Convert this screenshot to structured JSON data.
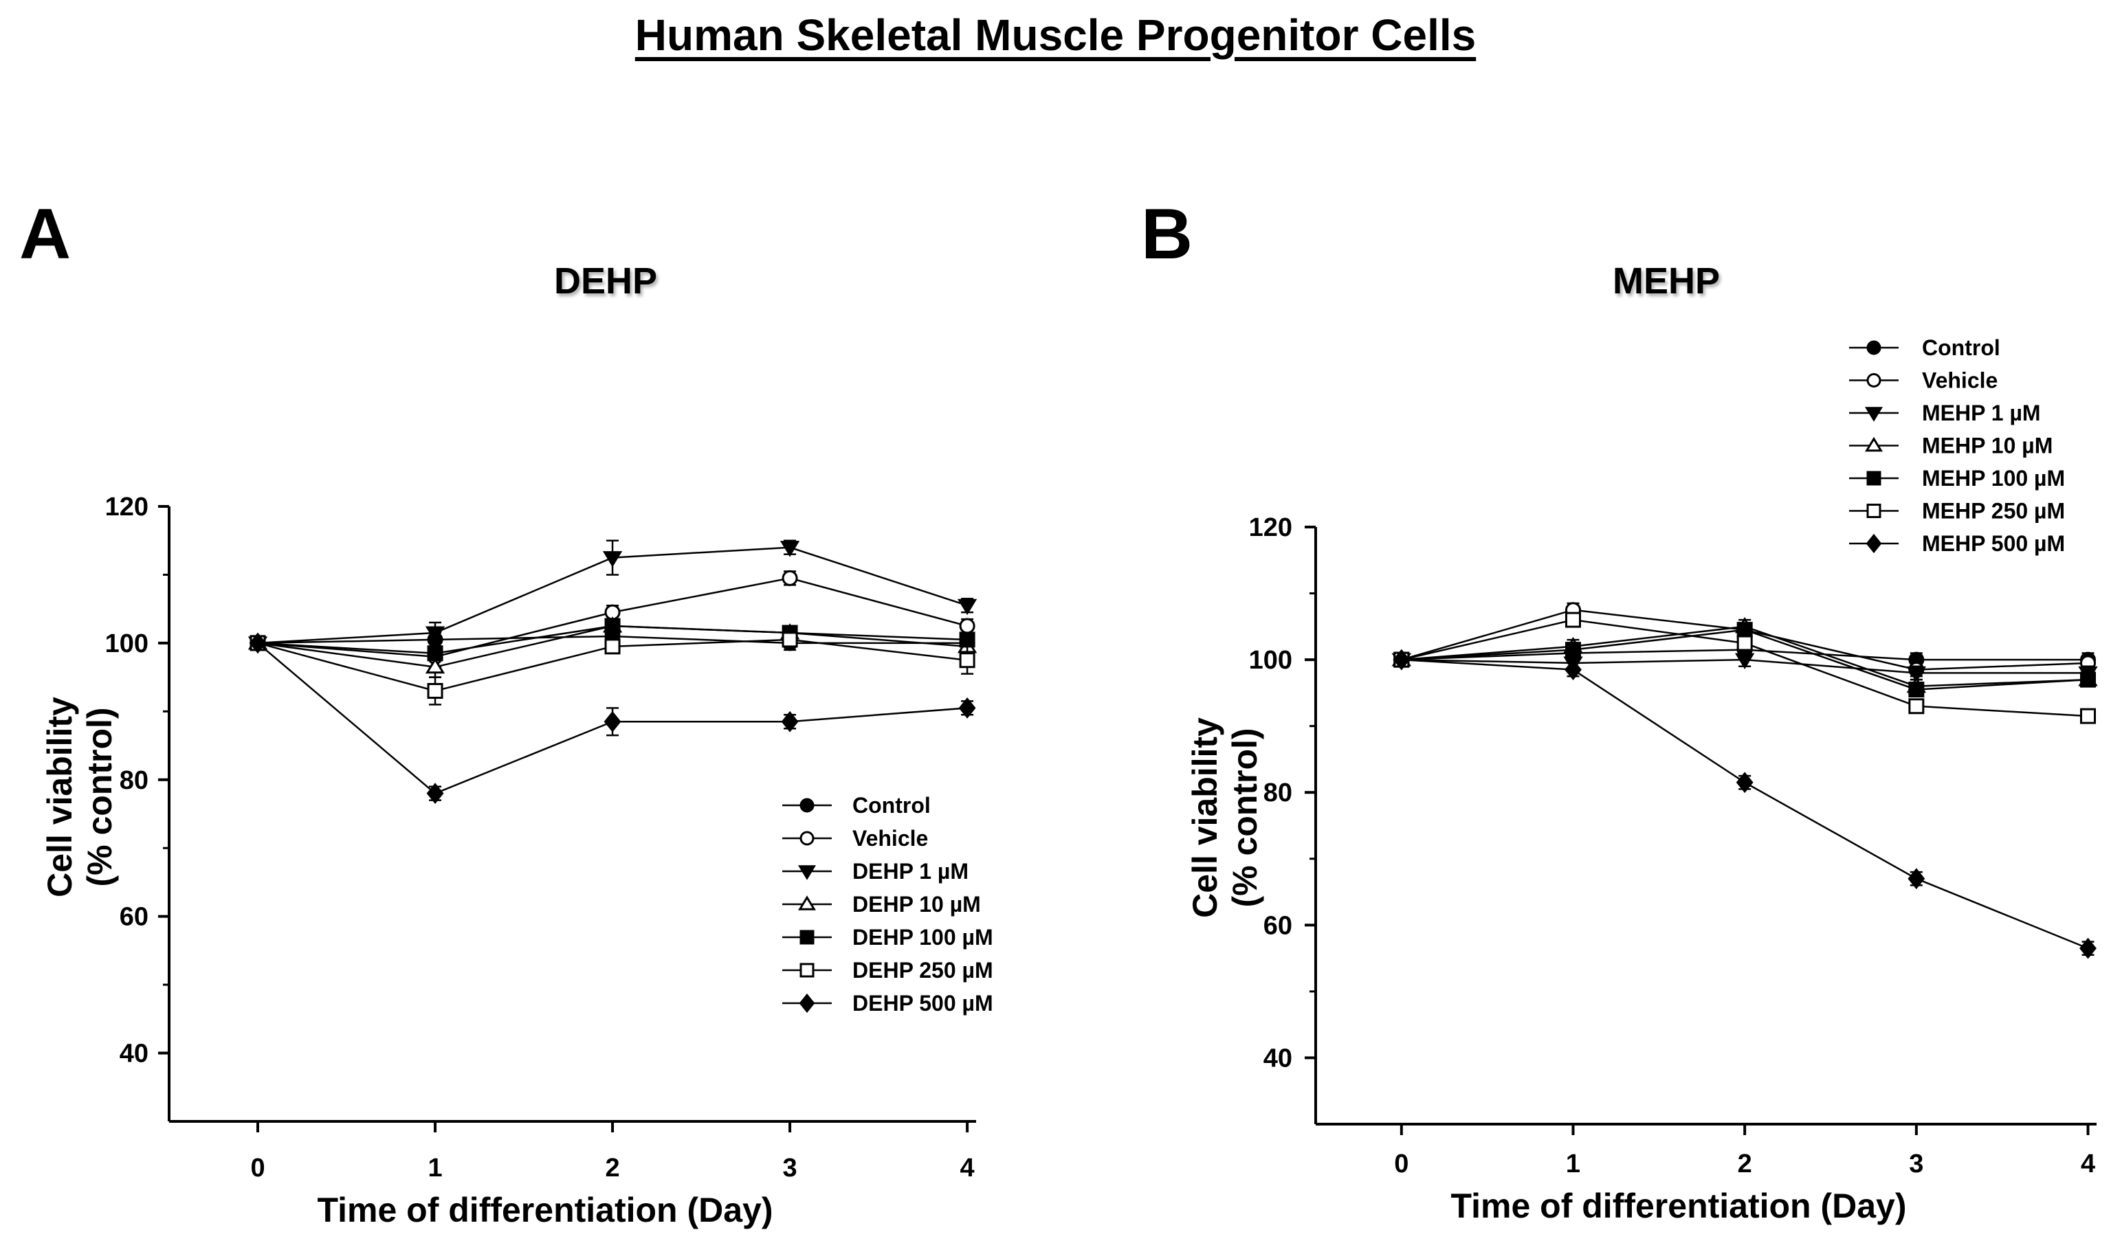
{
  "page": {
    "title": "Human Skeletal Muscle Progenitor Cells",
    "panel_a_letter": "A",
    "panel_b_letter": "B"
  },
  "chart_data": [
    {
      "type": "line",
      "panel": "A",
      "title": "DEHP",
      "xlabel": "Time of differentiation (Day)",
      "ylabel": "Cell viability (% control)",
      "x": [
        0,
        1,
        2,
        3,
        4
      ],
      "xticks": [
        "0",
        "1",
        "2",
        "3",
        "4"
      ],
      "yticks": [
        "40",
        "60",
        "80",
        "100",
        "120"
      ],
      "ylim": [
        30,
        120
      ],
      "xlim": [
        -0.5,
        4.05
      ],
      "legend_position": "lower-right",
      "series": [
        {
          "name": "Control",
          "marker": "circle-filled",
          "values": [
            100,
            100.5,
            101,
            100,
            100
          ],
          "errors": [
            0,
            1,
            1,
            1,
            1
          ]
        },
        {
          "name": "Vehicle",
          "marker": "circle-open",
          "values": [
            100,
            98,
            104.5,
            109.5,
            102.5
          ],
          "errors": [
            0,
            1.5,
            1,
            1,
            1
          ]
        },
        {
          "name": "DEHP 1 µM",
          "marker": "triangle-down-filled",
          "values": [
            100,
            101.5,
            112.5,
            114,
            105.5
          ],
          "errors": [
            0,
            1.5,
            2.5,
            1,
            1
          ]
        },
        {
          "name": "DEHP 10 µM",
          "marker": "triangle-up-open",
          "values": [
            100,
            96.5,
            102.5,
            101.5,
            99.5
          ],
          "errors": [
            0,
            1.5,
            1,
            1,
            1
          ]
        },
        {
          "name": "DEHP 100 µM",
          "marker": "square-filled",
          "values": [
            100,
            98.5,
            102.5,
            101.5,
            100.5
          ],
          "errors": [
            0,
            1,
            1,
            1,
            1
          ]
        },
        {
          "name": "DEHP 250 µM",
          "marker": "square-open",
          "values": [
            100,
            93,
            99.5,
            100.5,
            97.5
          ],
          "errors": [
            0,
            2,
            1,
            1,
            2
          ]
        },
        {
          "name": "DEHP 500 µM",
          "marker": "diamond-filled",
          "values": [
            100,
            78,
            88.5,
            88.5,
            90.5
          ],
          "errors": [
            0,
            1,
            2,
            1,
            1
          ]
        }
      ]
    },
    {
      "type": "line",
      "panel": "B",
      "title": "MEHP",
      "xlabel": "Time of differentiation (Day)",
      "ylabel": "Cell viability (% control)",
      "x": [
        0,
        1,
        2,
        3,
        4
      ],
      "xticks": [
        "0",
        "1",
        "2",
        "3",
        "4"
      ],
      "yticks": [
        "40",
        "60",
        "80",
        "100",
        "120"
      ],
      "ylim": [
        30,
        120
      ],
      "xlim": [
        -0.5,
        4.05
      ],
      "legend_position": "top-right",
      "series": [
        {
          "name": "Control",
          "marker": "circle-filled",
          "values": [
            100,
            101,
            101.5,
            100,
            100
          ],
          "errors": [
            0,
            1,
            1,
            1,
            1
          ]
        },
        {
          "name": "Vehicle",
          "marker": "circle-open",
          "values": [
            100,
            107.5,
            104.5,
            98.5,
            99.5
          ],
          "errors": [
            0,
            1,
            1,
            1,
            1
          ]
        },
        {
          "name": "MEHP 1 µM",
          "marker": "triangle-down-filled",
          "values": [
            100,
            99.5,
            100,
            98,
            98
          ],
          "errors": [
            0,
            1,
            1,
            1,
            1
          ]
        },
        {
          "name": "MEHP 10 µM",
          "marker": "triangle-up-open",
          "values": [
            100,
            102,
            105,
            96,
            97
          ],
          "errors": [
            0,
            1,
            1,
            1,
            1
          ]
        },
        {
          "name": "MEHP 100 µM",
          "marker": "square-filled",
          "values": [
            100,
            101.5,
            104.5,
            95.5,
            97
          ],
          "errors": [
            0,
            1,
            1,
            1,
            1
          ]
        },
        {
          "name": "MEHP 250 µM",
          "marker": "square-open",
          "values": [
            100,
            106,
            102.5,
            93,
            91.5
          ],
          "errors": [
            0,
            1,
            1,
            1,
            1
          ]
        },
        {
          "name": "MEHP 500 µM",
          "marker": "diamond-filled",
          "values": [
            100,
            98.5,
            81.5,
            67,
            56.5
          ],
          "errors": [
            0,
            1,
            1,
            1,
            1
          ]
        }
      ]
    }
  ]
}
